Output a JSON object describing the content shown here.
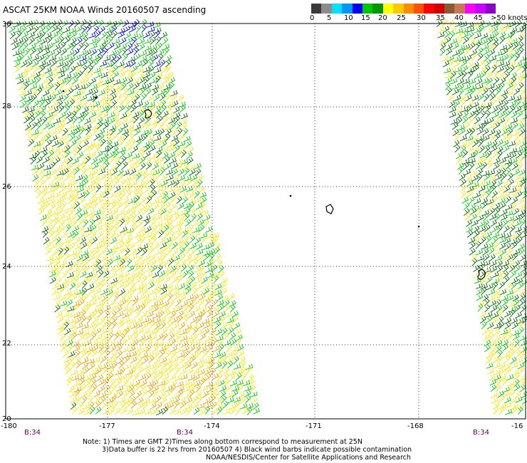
{
  "title": "ASCAT 25KM NOAA Winds 20160507 ascending",
  "colorbar": {
    "colors": [
      "#3a3a3a",
      "#8c8c8c",
      "#00e1ff",
      "#0096ff",
      "#0000ff",
      "#00c800",
      "#009600",
      "#ffff00",
      "#ffc800",
      "#ff8c00",
      "#ff5000",
      "#ff0000",
      "#d20000",
      "#8c5a32",
      "#c87850",
      "#ff00ff",
      "#c800ff",
      "#8c00c8"
    ],
    "labels": [
      "0",
      "5",
      "10",
      "15",
      "20",
      "25",
      "30",
      "35",
      "40",
      "45",
      ">50 knots"
    ]
  },
  "map": {
    "lon_ticks": [
      "-180",
      "-177",
      "-174",
      "-171",
      "-168",
      "-16"
    ],
    "lat_ticks": [
      "30",
      "28",
      "26",
      "24",
      "22",
      "20"
    ],
    "pass_labels": [
      "B:34",
      "B:34",
      "B:34"
    ]
  },
  "wind_colors": {
    "yellow": "#f5e600",
    "light_green": "#00c800",
    "dark_green": "#006400",
    "blue": "#0000dc",
    "orange": "#e6a000",
    "black": "#000000"
  },
  "notes": {
    "line1": "Note: 1) Times are GMT 2)Times along bottom correspond to measurement at 25N",
    "line2": "3)Data buffer is 22 hrs from 20160507 4) Black wind barbs indicate possible contamination",
    "line3": "NOAA/NESDIS/Center for Satellite Applications and Research"
  }
}
